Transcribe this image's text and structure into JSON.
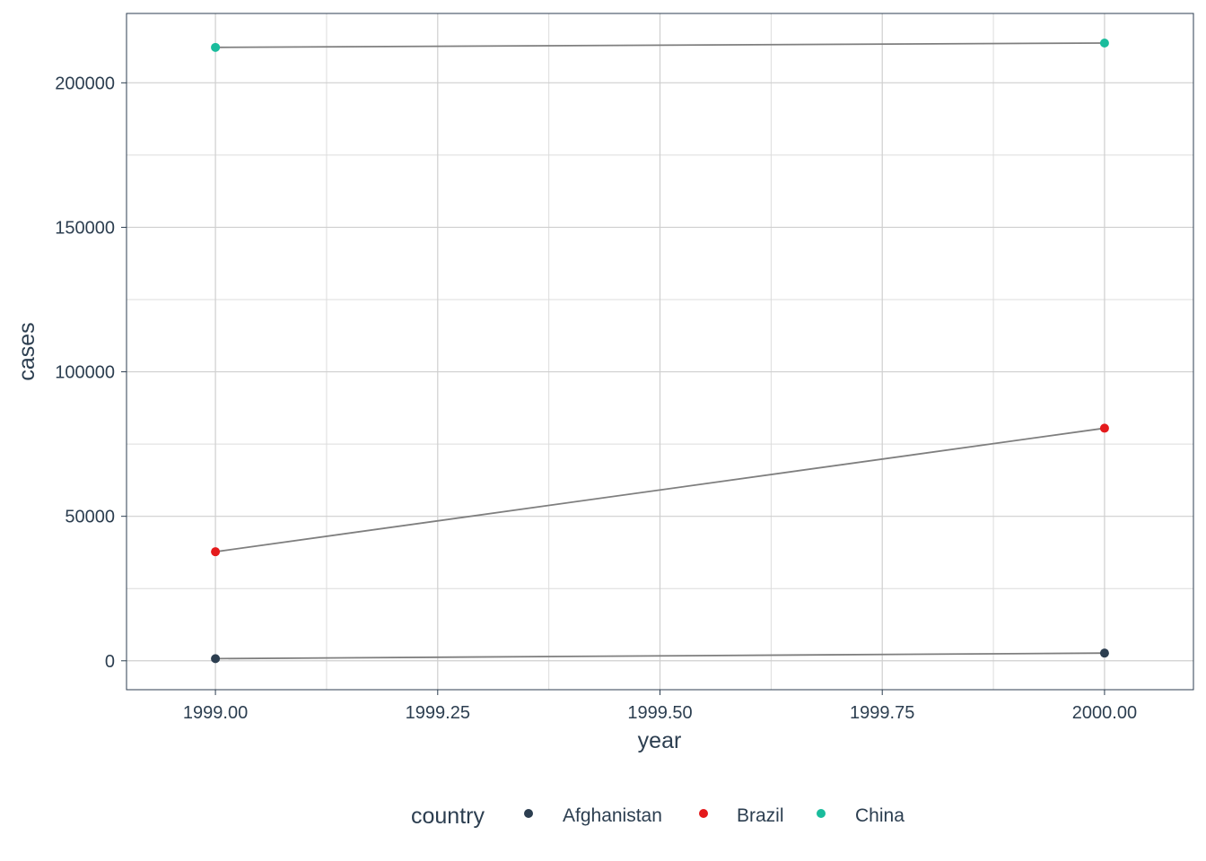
{
  "chart_data": {
    "type": "line",
    "xlabel": "year",
    "ylabel": "cases",
    "xlim": [
      1998.9,
      2000.1
    ],
    "ylim": [
      -10000,
      224000
    ],
    "x_ticks": [
      1999.0,
      1999.25,
      1999.5,
      1999.75,
      2000.0
    ],
    "x_tick_labels": [
      "1999.00",
      "1999.25",
      "1999.50",
      "1999.75",
      "2000.00"
    ],
    "y_ticks": [
      0,
      50000,
      100000,
      150000,
      200000
    ],
    "y_tick_labels": [
      "0",
      "50000",
      "100000",
      "150000",
      "200000"
    ],
    "grid": true,
    "line_color": "#7f7f7f",
    "legend": {
      "title": "country",
      "placement": "bottom"
    },
    "series": [
      {
        "name": "Afghanistan",
        "color": "#2c3e50",
        "x": [
          1999,
          2000
        ],
        "y": [
          745,
          2666
        ]
      },
      {
        "name": "Brazil",
        "color": "#e41a1c",
        "x": [
          1999,
          2000
        ],
        "y": [
          37737,
          80488
        ]
      },
      {
        "name": "China",
        "color": "#1abc9c",
        "x": [
          1999,
          2000
        ],
        "y": [
          212258,
          213766
        ]
      }
    ]
  }
}
